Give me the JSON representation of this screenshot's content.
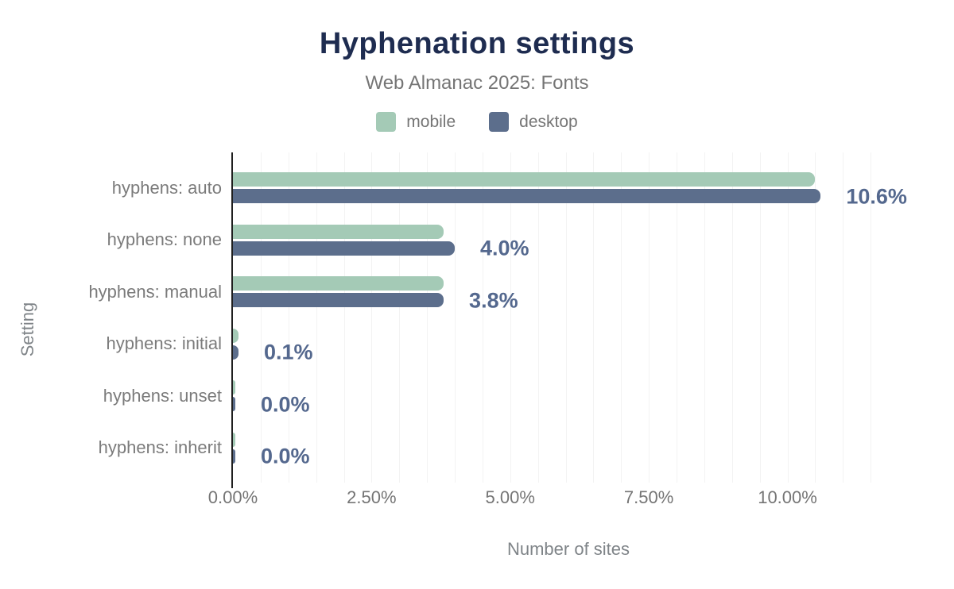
{
  "header": {
    "title": "Hyphenation settings",
    "subtitle": "Web Almanac 2025: Fonts"
  },
  "legend": [
    {
      "label": "mobile",
      "color": "#a4cab6"
    },
    {
      "label": "desktop",
      "color": "#5c6e8c"
    }
  ],
  "chart_data": {
    "type": "bar",
    "orientation": "horizontal",
    "title": "Hyphenation settings",
    "subtitle": "Web Almanac 2025: Fonts",
    "xlabel": "Number of sites",
    "ylabel": "Setting",
    "categories": [
      "hyphens: auto",
      "hyphens: none",
      "hyphens: manual",
      "hyphens: initial",
      "hyphens: unset",
      "hyphens: inherit"
    ],
    "series": [
      {
        "name": "mobile",
        "color": "#a4cab6",
        "values": [
          10.5,
          3.8,
          3.8,
          0.1,
          0.0,
          0.0
        ]
      },
      {
        "name": "desktop",
        "color": "#5c6e8c",
        "values": [
          10.6,
          4.0,
          3.8,
          0.1,
          0.0,
          0.0
        ]
      }
    ],
    "value_labels": [
      "10.6%",
      "4.0%",
      "3.8%",
      "0.1%",
      "0.0%",
      "0.0%"
    ],
    "x_ticks": [
      {
        "value": 0,
        "label": "0.00%"
      },
      {
        "value": 2.5,
        "label": "2.50%"
      },
      {
        "value": 5,
        "label": "5.00%"
      },
      {
        "value": 7.5,
        "label": "7.50%"
      },
      {
        "value": 10,
        "label": "10.00%"
      }
    ],
    "xlim": [
      0,
      12.1
    ],
    "gridline_step": 0.5,
    "grid": true,
    "legend_position": "top"
  },
  "colors": {
    "title": "#1e2c50",
    "subtitle": "#757575",
    "value_label": "#54688e",
    "axis_line": "#1f1f1f",
    "gridline": "#f3f3f3",
    "category_label": "#7b7b7b",
    "tick_label": "#757575",
    "background": "#ffffff"
  }
}
